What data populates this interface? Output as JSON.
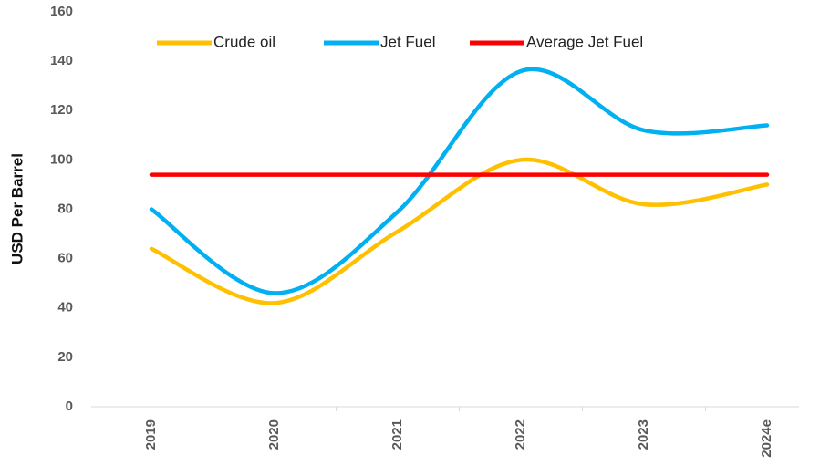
{
  "chart_data": {
    "type": "line",
    "y_axis_label": "USD Per Barrel",
    "categories": [
      "2019",
      "2020",
      "2021",
      "2022",
      "2023",
      "2024e"
    ],
    "series": [
      {
        "name": "Crude oil",
        "color": "#ffc000",
        "values": [
          64,
          42,
          71,
          100,
          82,
          90
        ]
      },
      {
        "name": "Jet Fuel",
        "color": "#00b0f0",
        "values": [
          80,
          46,
          79,
          136,
          112,
          114
        ]
      },
      {
        "name": "Average Jet Fuel",
        "color": "#ff0000",
        "values": [
          94,
          94,
          94,
          94,
          94,
          94
        ],
        "smooth": false
      }
    ],
    "ylim": [
      0,
      160
    ],
    "yticks": [
      0,
      20,
      40,
      60,
      80,
      100,
      120,
      140,
      160
    ],
    "legend": "top",
    "smooth": true
  }
}
